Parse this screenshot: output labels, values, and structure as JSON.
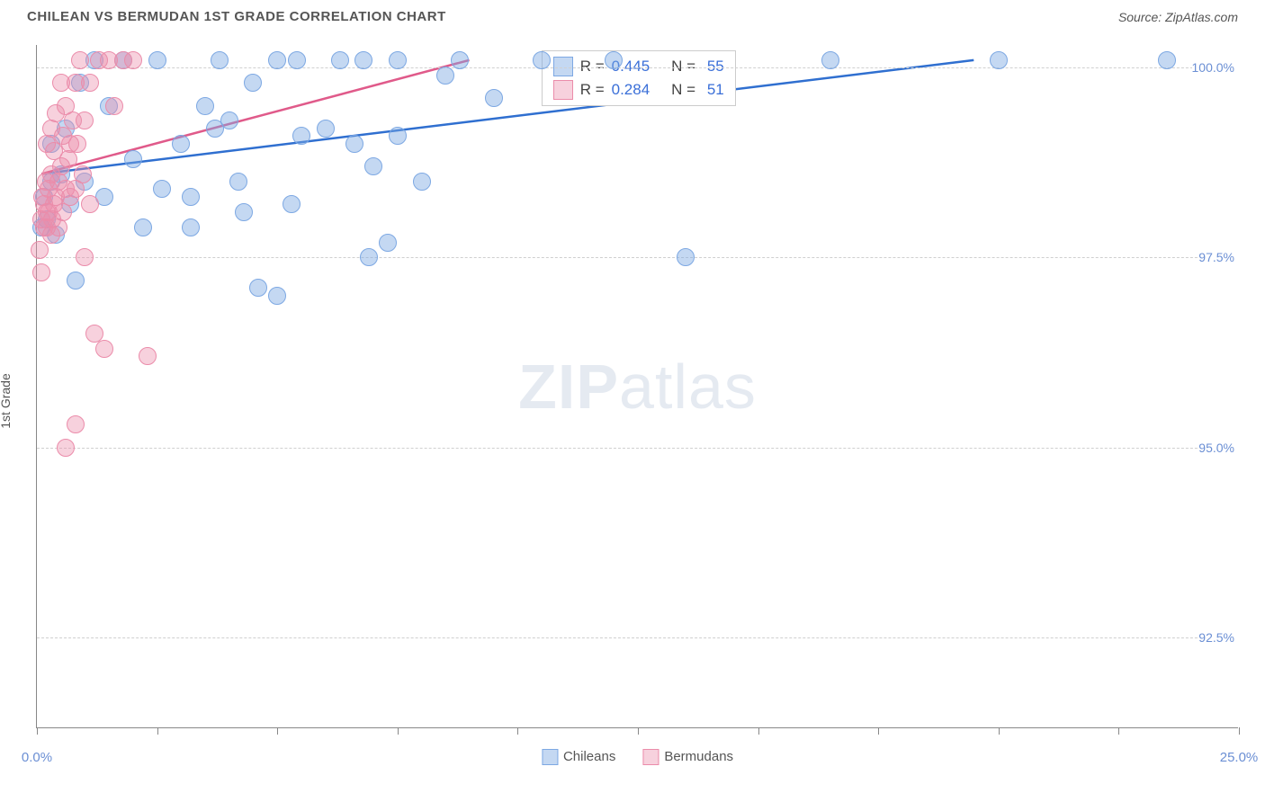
{
  "title": "CHILEAN VS BERMUDAN 1ST GRADE CORRELATION CHART",
  "source_label": "Source: ZipAtlas.com",
  "yaxis_label": "1st Grade",
  "watermark_bold": "ZIP",
  "watermark_light": "atlas",
  "chart": {
    "type": "scatter",
    "background_color": "#ffffff",
    "grid_color": "#d0d0d0",
    "axis_color": "#888888",
    "tick_label_color": "#6b8fd4",
    "xlim": [
      0,
      25
    ],
    "ylim": [
      91.3,
      100.3
    ],
    "xtick_positions": [
      0,
      2.5,
      5,
      7.5,
      10,
      12.5,
      15,
      17.5,
      20,
      22.5,
      25
    ],
    "xtick_labels_visible": {
      "0": "0.0%",
      "25": "25.0%"
    },
    "ytick_positions": [
      92.5,
      95.0,
      97.5,
      100.0
    ],
    "ytick_labels": [
      "92.5%",
      "95.0%",
      "97.5%",
      "100.0%"
    ],
    "marker_size": 20,
    "marker_stroke_width": 1.5,
    "line_width": 2.5,
    "series": [
      {
        "name": "Chileans",
        "fill_color": "rgba(125,168,227,0.45)",
        "stroke_color": "#7da8e3",
        "line_color": "#2f6fd0",
        "trend_line": {
          "x1": 0.1,
          "y1": 98.6,
          "x2": 19.5,
          "y2": 100.1
        },
        "points": [
          [
            0.1,
            97.9
          ],
          [
            0.2,
            98.0
          ],
          [
            0.15,
            98.3
          ],
          [
            0.3,
            98.5
          ],
          [
            0.3,
            99.0
          ],
          [
            0.4,
            97.8
          ],
          [
            0.5,
            98.6
          ],
          [
            0.6,
            99.2
          ],
          [
            0.7,
            98.2
          ],
          [
            0.8,
            97.2
          ],
          [
            0.9,
            99.8
          ],
          [
            1.0,
            98.5
          ],
          [
            1.2,
            100.1
          ],
          [
            1.4,
            98.3
          ],
          [
            1.5,
            99.5
          ],
          [
            1.8,
            100.1
          ],
          [
            2.0,
            98.8
          ],
          [
            2.2,
            97.9
          ],
          [
            2.5,
            100.1
          ],
          [
            2.6,
            98.4
          ],
          [
            3.0,
            99.0
          ],
          [
            3.2,
            97.9
          ],
          [
            3.2,
            98.3
          ],
          [
            3.5,
            99.5
          ],
          [
            3.7,
            99.2
          ],
          [
            3.8,
            100.1
          ],
          [
            4.0,
            99.3
          ],
          [
            4.2,
            98.5
          ],
          [
            4.3,
            98.1
          ],
          [
            4.5,
            99.8
          ],
          [
            4.6,
            97.1
          ],
          [
            5.0,
            97.0
          ],
          [
            5.0,
            100.1
          ],
          [
            5.3,
            98.2
          ],
          [
            5.4,
            100.1
          ],
          [
            5.5,
            99.1
          ],
          [
            6.0,
            99.2
          ],
          [
            6.3,
            100.1
          ],
          [
            6.6,
            99.0
          ],
          [
            6.8,
            100.1
          ],
          [
            6.9,
            97.5
          ],
          [
            7.0,
            98.7
          ],
          [
            7.3,
            97.7
          ],
          [
            7.5,
            99.1
          ],
          [
            7.5,
            100.1
          ],
          [
            8.0,
            98.5
          ],
          [
            8.5,
            99.9
          ],
          [
            8.8,
            100.1
          ],
          [
            9.5,
            99.6
          ],
          [
            10.5,
            100.1
          ],
          [
            12.0,
            100.1
          ],
          [
            13.5,
            97.5
          ],
          [
            16.5,
            100.1
          ],
          [
            20.0,
            100.1
          ],
          [
            23.5,
            100.1
          ]
        ]
      },
      {
        "name": "Bermudans",
        "fill_color": "rgba(235,140,170,0.40)",
        "stroke_color": "#eb8caa",
        "line_color": "#e05a8a",
        "trend_line": {
          "x1": 0.1,
          "y1": 98.6,
          "x2": 9.0,
          "y2": 100.1
        },
        "points": [
          [
            0.05,
            97.6
          ],
          [
            0.1,
            97.3
          ],
          [
            0.1,
            98.0
          ],
          [
            0.12,
            98.3
          ],
          [
            0.15,
            98.2
          ],
          [
            0.15,
            97.9
          ],
          [
            0.18,
            98.5
          ],
          [
            0.2,
            98.1
          ],
          [
            0.2,
            99.0
          ],
          [
            0.2,
            97.9
          ],
          [
            0.25,
            98.4
          ],
          [
            0.25,
            98.1
          ],
          [
            0.3,
            97.8
          ],
          [
            0.3,
            98.6
          ],
          [
            0.3,
            99.2
          ],
          [
            0.32,
            98.0
          ],
          [
            0.35,
            98.2
          ],
          [
            0.35,
            98.9
          ],
          [
            0.4,
            98.3
          ],
          [
            0.4,
            99.4
          ],
          [
            0.45,
            98.5
          ],
          [
            0.45,
            97.9
          ],
          [
            0.5,
            98.7
          ],
          [
            0.5,
            99.8
          ],
          [
            0.55,
            98.1
          ],
          [
            0.55,
            99.1
          ],
          [
            0.6,
            98.4
          ],
          [
            0.6,
            99.5
          ],
          [
            0.65,
            98.8
          ],
          [
            0.7,
            99.0
          ],
          [
            0.7,
            98.3
          ],
          [
            0.75,
            99.3
          ],
          [
            0.8,
            99.8
          ],
          [
            0.8,
            98.4
          ],
          [
            0.85,
            99.0
          ],
          [
            0.9,
            100.1
          ],
          [
            0.95,
            98.6
          ],
          [
            1.0,
            99.3
          ],
          [
            1.0,
            97.5
          ],
          [
            1.1,
            99.8
          ],
          [
            1.1,
            98.2
          ],
          [
            1.2,
            96.5
          ],
          [
            1.3,
            100.1
          ],
          [
            1.4,
            96.3
          ],
          [
            1.5,
            100.1
          ],
          [
            1.6,
            99.5
          ],
          [
            0.6,
            95.0
          ],
          [
            0.8,
            95.3
          ],
          [
            1.8,
            100.1
          ],
          [
            2.0,
            100.1
          ],
          [
            2.3,
            96.2
          ]
        ]
      }
    ]
  },
  "stats": [
    {
      "swatch_fill": "rgba(125,168,227,0.45)",
      "swatch_stroke": "#7da8e3",
      "r_label": "R =",
      "r": "0.445",
      "n_label": "N =",
      "n": "55"
    },
    {
      "swatch_fill": "rgba(235,140,170,0.40)",
      "swatch_stroke": "#eb8caa",
      "r_label": "R =",
      "r": "0.284",
      "n_label": "N =",
      "n": "51"
    }
  ],
  "legend_bottom": [
    {
      "label": "Chileans",
      "fill": "rgba(125,168,227,0.45)",
      "stroke": "#7da8e3"
    },
    {
      "label": "Bermudans",
      "fill": "rgba(235,140,170,0.40)",
      "stroke": "#eb8caa"
    }
  ]
}
